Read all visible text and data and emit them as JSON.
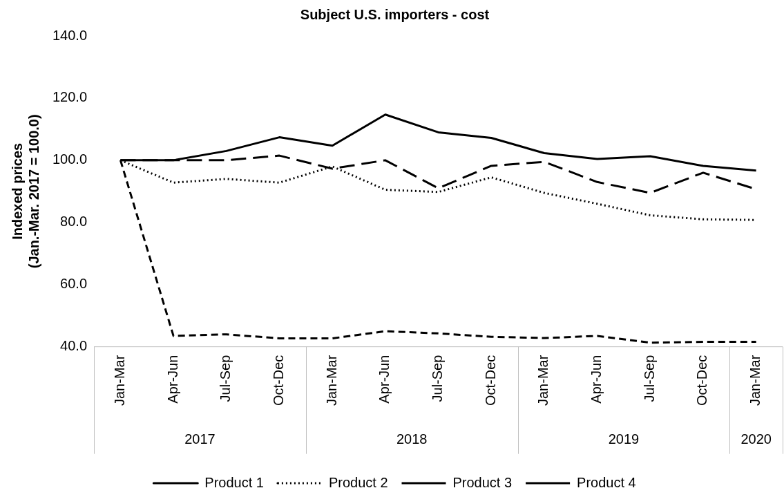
{
  "chart_data": {
    "type": "line",
    "title": "Subject U.S. importers - cost",
    "ylabel": "Indexed prices\n(Jan.-Mar. 2017 = 100.0)",
    "categories": [
      "Jan-Mar",
      "Apr-Jun",
      "Jul-Sep",
      "Oct-Dec",
      "Jan-Mar",
      "Apr-Jun",
      "Jul-Sep",
      "Oct-Dec",
      "Jan-Mar",
      "Apr-Jun",
      "Jul-Sep",
      "Oct-Dec",
      "Jan-Mar"
    ],
    "annotations": [
      "2017",
      "2018",
      "2019",
      "2020"
    ],
    "series": [
      {
        "name": "Product 1",
        "color": "#000000",
        "line_style": "solid",
        "values": [
          100,
          100,
          103,
          107.4,
          104.7,
          114.7,
          109,
          107.2,
          102.3,
          100.4,
          101.3,
          98.2,
          96.7
        ]
      },
      {
        "name": "Product 2",
        "color": "#000000",
        "line_style": "dotted",
        "values": [
          100,
          92.8,
          94,
          92.8,
          98,
          90.5,
          89.8,
          94.5,
          89.5,
          86,
          82.3,
          81,
          80.8
        ]
      },
      {
        "name": "Product 3",
        "color": "#000000",
        "line_style": "dashed",
        "values": [
          100,
          43.5,
          44,
          42.7,
          42.7,
          45,
          44.3,
          43.2,
          42.8,
          43.5,
          41.3,
          41.6,
          41.6
        ]
      },
      {
        "name": "Product 4",
        "color": "#000000",
        "line_style": "dashed",
        "values": [
          100,
          100,
          100,
          101.5,
          97.3,
          100,
          91,
          98.2,
          99.5,
          93,
          89.5,
          96,
          90.7
        ]
      }
    ],
    "ylim": [
      40,
      140
    ],
    "yticks": [
      {
        "value": 40,
        "label": "40.0"
      },
      {
        "value": 60,
        "label": "60.0"
      },
      {
        "value": 80,
        "label": "80.0"
      },
      {
        "value": 100,
        "label": "100.0"
      },
      {
        "value": 120,
        "label": "120.0"
      },
      {
        "value": 140,
        "label": "140.0"
      }
    ],
    "marker": "none",
    "legend": "bottom"
  }
}
